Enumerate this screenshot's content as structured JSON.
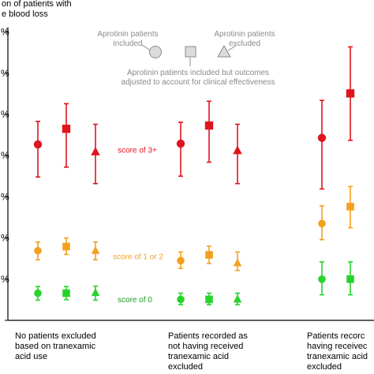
{
  "chart_data": {
    "type": "scatter",
    "ylabel_lines": [
      "on of patients with",
      "e blood loss"
    ],
    "ytick_labels": [
      "%",
      "%",
      "%",
      "%",
      "%",
      "%",
      "%"
    ],
    "ylim": [
      0,
      70
    ],
    "yticks": [
      10,
      20,
      30,
      40,
      50,
      60,
      70
    ],
    "groups": [
      {
        "label_lines": [
          "No patients excluded",
          "based on tranexamic",
          "acid use"
        ]
      },
      {
        "label_lines": [
          "Patients recorded as",
          "not having received",
          "tranexamic acid",
          "excluded"
        ]
      },
      {
        "label_lines": [
          "Patients recorc",
          "having receivec",
          "tranexamic acid",
          "excluded"
        ]
      }
    ],
    "legend": {
      "included": [
        "Aprotinin patients",
        "included"
      ],
      "excluded": [
        "Aprotinin patients",
        "excluded"
      ],
      "adjusted": [
        "Aprotinin patients included but outcomes",
        "adjusted to account for clinical effectiveness"
      ]
    },
    "annotations": {
      "high": "score of 3+",
      "mid": "score of 1 or 2",
      "low": "score of 0"
    },
    "series_colors": {
      "high": "#e0141e",
      "mid": "#f3a01f",
      "low": "#27d32b"
    },
    "points": [
      {
        "group": 0,
        "variant": "included",
        "score": "high",
        "y": 42.7,
        "lo": 34.8,
        "hi": 48.3
      },
      {
        "group": 0,
        "variant": "adjusted",
        "score": "high",
        "y": 46.5,
        "lo": 37.2,
        "hi": 52.6
      },
      {
        "group": 0,
        "variant": "excluded",
        "score": "high",
        "y": 40.9,
        "lo": 33.2,
        "hi": 47.6
      },
      {
        "group": 0,
        "variant": "included",
        "score": "mid",
        "y": 16.9,
        "lo": 14.7,
        "hi": 19.0
      },
      {
        "group": 0,
        "variant": "adjusted",
        "score": "mid",
        "y": 17.9,
        "lo": 16.0,
        "hi": 20.0
      },
      {
        "group": 0,
        "variant": "excluded",
        "score": "mid",
        "y": 16.9,
        "lo": 14.7,
        "hi": 19.0
      },
      {
        "group": 0,
        "variant": "included",
        "score": "low",
        "y": 6.6,
        "lo": 4.9,
        "hi": 8.2
      },
      {
        "group": 0,
        "variant": "adjusted",
        "score": "low",
        "y": 6.6,
        "lo": 5.0,
        "hi": 8.2
      },
      {
        "group": 0,
        "variant": "excluded",
        "score": "low",
        "y": 6.7,
        "lo": 4.9,
        "hi": 8.3
      },
      {
        "group": 1,
        "variant": "included",
        "score": "high",
        "y": 42.9,
        "lo": 35.0,
        "hi": 48.1
      },
      {
        "group": 1,
        "variant": "adjusted",
        "score": "high",
        "y": 47.3,
        "lo": 38.4,
        "hi": 53.2
      },
      {
        "group": 1,
        "variant": "excluded",
        "score": "high",
        "y": 41.2,
        "lo": 33.2,
        "hi": 47.6
      },
      {
        "group": 1,
        "variant": "included",
        "score": "mid",
        "y": 14.5,
        "lo": 12.6,
        "hi": 16.6
      },
      {
        "group": 1,
        "variant": "adjusted",
        "score": "mid",
        "y": 15.9,
        "lo": 13.8,
        "hi": 18.0
      },
      {
        "group": 1,
        "variant": "excluded",
        "score": "mid",
        "y": 13.9,
        "lo": 12.1,
        "hi": 16.6
      },
      {
        "group": 1,
        "variant": "included",
        "score": "low",
        "y": 5.1,
        "lo": 3.8,
        "hi": 6.6
      },
      {
        "group": 1,
        "variant": "adjusted",
        "score": "low",
        "y": 5.1,
        "lo": 3.8,
        "hi": 6.6
      },
      {
        "group": 1,
        "variant": "excluded",
        "score": "low",
        "y": 5.1,
        "lo": 3.8,
        "hi": 6.6
      },
      {
        "group": 2,
        "variant": "included",
        "score": "high",
        "y": 44.3,
        "lo": 31.9,
        "hi": 53.4
      },
      {
        "group": 2,
        "variant": "adjusted",
        "score": "high",
        "y": 55.1,
        "lo": 43.7,
        "hi": 66.4
      },
      {
        "group": 2,
        "variant": "included",
        "score": "mid",
        "y": 23.5,
        "lo": 19.6,
        "hi": 27.8
      },
      {
        "group": 2,
        "variant": "adjusted",
        "score": "mid",
        "y": 27.6,
        "lo": 22.5,
        "hi": 32.5
      },
      {
        "group": 2,
        "variant": "included",
        "score": "low",
        "y": 10.0,
        "lo": 6.2,
        "hi": 14.2
      },
      {
        "group": 2,
        "variant": "adjusted",
        "score": "low",
        "y": 10.0,
        "lo": 6.2,
        "hi": 14.2
      }
    ]
  }
}
